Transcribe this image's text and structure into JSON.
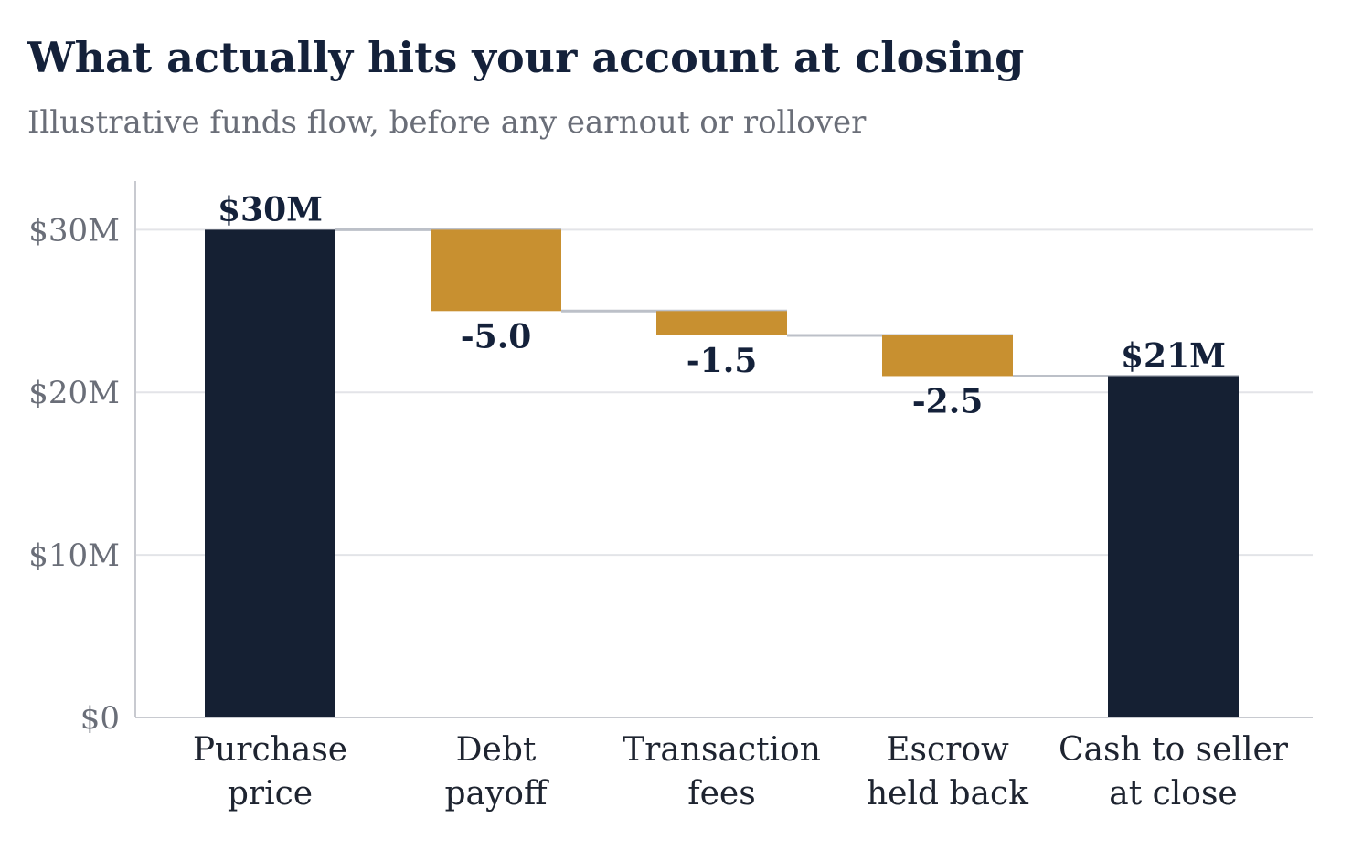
{
  "header": {
    "title": "What actually hits your account at closing",
    "subtitle": "Illustrative funds flow, before any earnout or rollover"
  },
  "colors": {
    "total": "#152033",
    "deduction": "#c89030",
    "connector": "#bcc0c8",
    "grid": "#e3e4e8",
    "axis": "#c8cad0"
  },
  "chart_data": {
    "type": "bar",
    "variant": "waterfall",
    "title": "What actually hits your account at closing",
    "subtitle": "Illustrative funds flow, before any earnout or rollover",
    "categories": [
      [
        "Purchase",
        "price"
      ],
      [
        "Debt",
        "payoff"
      ],
      [
        "Transaction",
        "fees"
      ],
      [
        "Escrow",
        "held back"
      ],
      [
        "Cash to seller",
        "at close"
      ]
    ],
    "values": [
      30,
      -5.0,
      -1.5,
      -2.5,
      21
    ],
    "kinds": [
      "total",
      "deduction",
      "deduction",
      "deduction",
      "total"
    ],
    "data_labels": [
      "$30M",
      "-5.0",
      "-1.5",
      "-2.5",
      "$21M"
    ],
    "y_ticks": [
      0,
      10,
      20,
      30
    ],
    "y_tick_labels": [
      "$0",
      "$10M",
      "$20M",
      "$30M"
    ],
    "ylim": [
      0,
      33
    ],
    "grid": true,
    "connectors": true,
    "legend": "none"
  }
}
